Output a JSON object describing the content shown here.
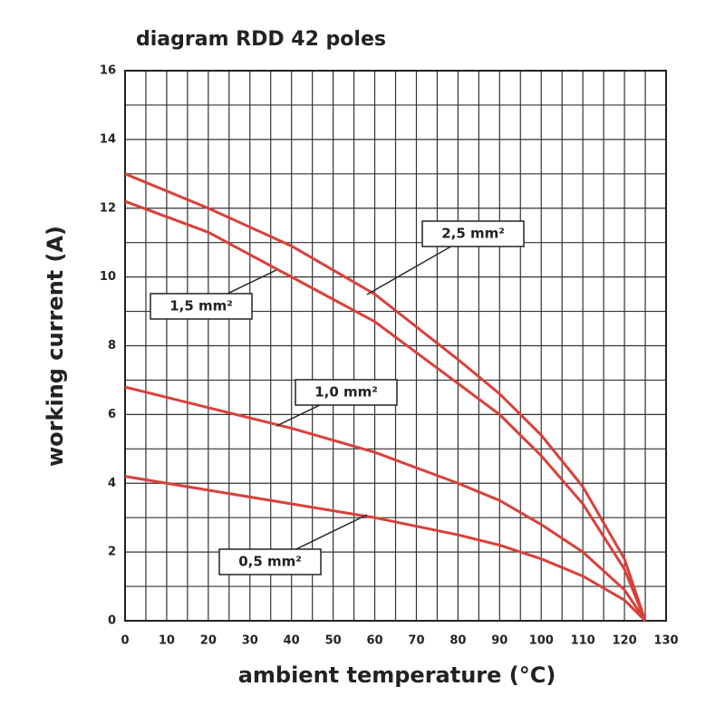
{
  "chart_data": {
    "type": "line",
    "title": "diagram RDD 42 poles",
    "x_label": "ambient temperature (°C)",
    "y_label": "working current (A)",
    "x": [
      0,
      20,
      40,
      60,
      80,
      90,
      100,
      110,
      120,
      125
    ],
    "series": [
      {
        "name": "2,5 mm²",
        "color": "#d9403a",
        "values": [
          13,
          12,
          10.9,
          9.5,
          7.6,
          6.6,
          5.4,
          3.9,
          1.8,
          0
        ]
      },
      {
        "name": "1,5 mm²",
        "color": "#d9403a",
        "values": [
          12.2,
          11.3,
          10,
          8.7,
          6.9,
          6,
          4.8,
          3.4,
          1.5,
          0
        ]
      },
      {
        "name": "1,0 mm²",
        "color": "#d9403a",
        "values": [
          6.8,
          6.2,
          5.6,
          4.9,
          4,
          3.5,
          2.8,
          2,
          0.9,
          0
        ]
      },
      {
        "name": "0,5 mm²",
        "color": "#d9403a",
        "values": [
          4.2,
          3.8,
          3.4,
          3,
          2.5,
          2.2,
          1.8,
          1.3,
          0.6,
          0
        ]
      }
    ],
    "xlim": [
      0,
      130
    ],
    "xticks": [
      0,
      10,
      20,
      30,
      40,
      50,
      60,
      70,
      80,
      90,
      100,
      110,
      120,
      130
    ],
    "ylim": [
      0,
      16
    ],
    "yticks": [
      0,
      2,
      4,
      6,
      8,
      10,
      12,
      14,
      16
    ],
    "grid": true
  }
}
